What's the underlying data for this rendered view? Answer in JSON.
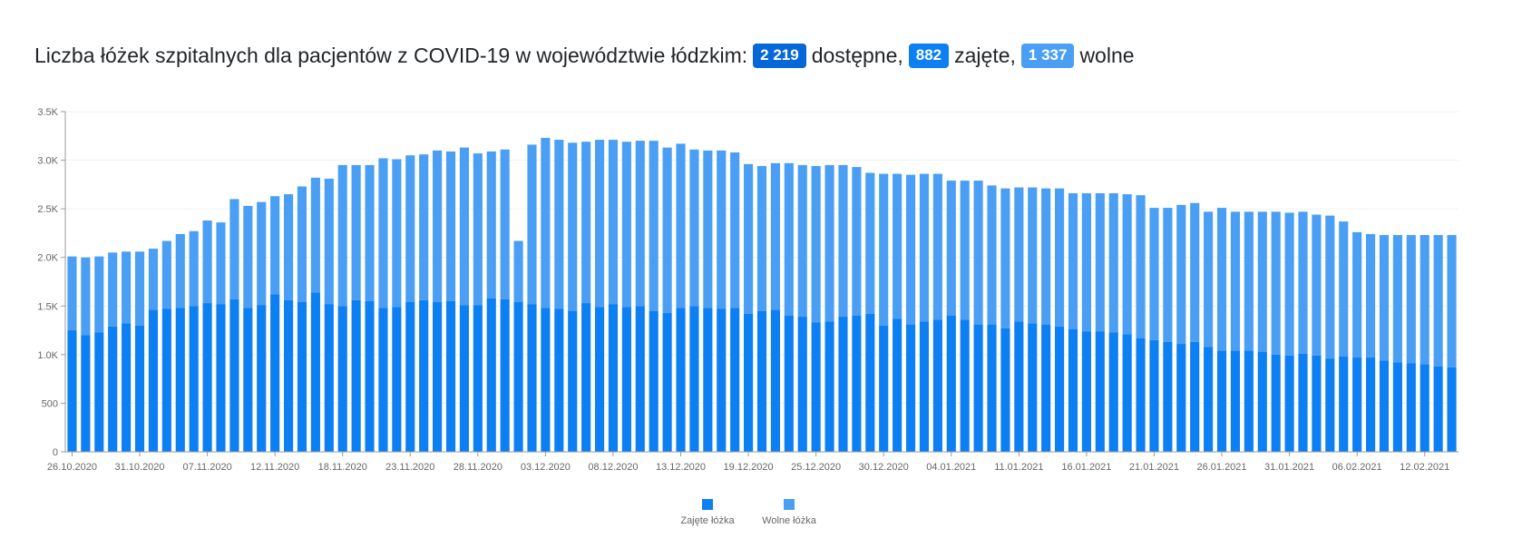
{
  "header": {
    "title_prefix": "Liczba łóżek szpitalnych dla pacjentów z COVID-19 w województwie łódzkim:",
    "available_value": "2 219",
    "available_label": "dostępne,",
    "occupied_value": "882",
    "occupied_label": "zajęte,",
    "free_value": "1 337",
    "free_label": "wolne"
  },
  "colors": {
    "occupied": "#0c7ff2",
    "free": "#4a9ff5",
    "badge_available": "#0668d8",
    "badge_occupied": "#0c7ff2",
    "badge_free": "#4a9ff5"
  },
  "chart_data": {
    "type": "bar",
    "stacked": true,
    "grid": true,
    "legend_position": "bottom",
    "ylim": [
      0,
      3500
    ],
    "y_ticks": [
      0,
      500,
      1000,
      1500,
      2000,
      2500,
      3000,
      3500
    ],
    "y_tick_labels": [
      "0",
      "500",
      "1.0K",
      "1.5K",
      "2.0K",
      "2.5K",
      "3.0K",
      "3.5K"
    ],
    "x_tick_labels": [
      "26.10.2020",
      "31.10.2020",
      "07.11.2020",
      "12.11.2020",
      "18.11.2020",
      "23.11.2020",
      "28.11.2020",
      "03.12.2020",
      "08.12.2020",
      "13.12.2020",
      "19.12.2020",
      "25.12.2020",
      "30.12.2020",
      "04.01.2021",
      "11.01.2021",
      "16.01.2021",
      "21.01.2021",
      "26.01.2021",
      "31.01.2021",
      "06.02.2021",
      "12.02.2021"
    ],
    "x_tick_label_bar_index": [
      0,
      5,
      10,
      15,
      20,
      25,
      30,
      35,
      40,
      45,
      50,
      55,
      60,
      65,
      70,
      75,
      80,
      85,
      90,
      95,
      100
    ],
    "series": [
      {
        "name": "Zajęte łóżka",
        "values": [
          1250,
          1200,
          1230,
          1290,
          1320,
          1300,
          1460,
          1470,
          1480,
          1500,
          1530,
          1520,
          1570,
          1480,
          1510,
          1620,
          1560,
          1540,
          1640,
          1520,
          1500,
          1560,
          1550,
          1480,
          1490,
          1540,
          1560,
          1540,
          1550,
          1510,
          1510,
          1580,
          1570,
          1540,
          1520,
          1480,
          1470,
          1450,
          1530,
          1490,
          1520,
          1490,
          1500,
          1450,
          1430,
          1480,
          1500,
          1480,
          1470,
          1480,
          1420,
          1450,
          1460,
          1400,
          1390,
          1330,
          1340,
          1390,
          1400,
          1420,
          1300,
          1370,
          1310,
          1340,
          1360,
          1400,
          1360,
          1310,
          1310,
          1270,
          1340,
          1320,
          1310,
          1290,
          1260,
          1240,
          1240,
          1230,
          1210,
          1170,
          1150,
          1130,
          1110,
          1130,
          1080,
          1040,
          1040,
          1040,
          1030,
          1000,
          990,
          1010,
          990,
          960,
          980,
          970,
          970,
          940,
          920,
          910,
          900,
          880,
          870
        ],
        "totals": [
          2010,
          2000,
          2010,
          2050,
          2060,
          2060,
          2090,
          2170,
          2240,
          2270,
          2380,
          2360,
          2600,
          2530,
          2570,
          2630,
          2650,
          2730,
          2820,
          2810,
          2950,
          2950,
          2950,
          3020,
          3010,
          3050,
          3060,
          3100,
          3090,
          3130,
          3070,
          3090,
          3110,
          2170,
          3160,
          3230,
          3210,
          3180,
          3190,
          3210,
          3210,
          3190,
          3200,
          3200,
          3130,
          3170,
          3110,
          3100,
          3100,
          3080,
          2960,
          2940,
          2970,
          2970,
          2950,
          2940,
          2950,
          2950,
          2930,
          2870,
          2860,
          2860,
          2850,
          2860,
          2860,
          2790,
          2790,
          2790,
          2740,
          2710,
          2720,
          2720,
          2710,
          2710,
          2660,
          2660,
          2660,
          2660,
          2650,
          2640,
          2510,
          2510,
          2540,
          2560,
          2470,
          2510,
          2470,
          2470,
          2470,
          2470,
          2460,
          2470,
          2440,
          2430,
          2370,
          2260,
          2240,
          2230,
          2230,
          2230,
          2230,
          2230,
          2230
        ]
      },
      {
        "name": "Wolne łóżka",
        "derived_from": "totals minus occupied"
      }
    ]
  }
}
